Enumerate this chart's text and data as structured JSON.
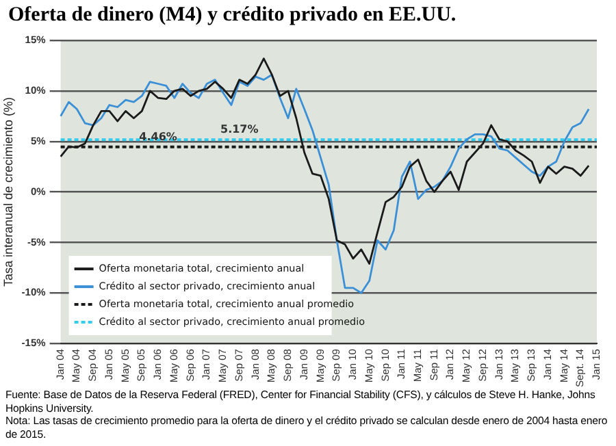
{
  "chart_data": {
    "type": "line",
    "title": "Oferta de dinero (M4) y crédito privado en EE.UU.",
    "ylabel": "Tasa interanual de crecimiento (%)",
    "categories": [
      "Jan 04",
      null,
      "May 04",
      null,
      "Sep 04",
      null,
      "Jan 05",
      null,
      "May 05",
      null,
      "Sep 05",
      null,
      "Jan 06",
      null,
      "May 06",
      null,
      "Sep 06",
      null,
      "Jan 07",
      null,
      "May 07",
      null,
      "Sep 07",
      null,
      "Jan 08",
      null,
      "May 08",
      null,
      "Sep 08",
      null,
      "Jan 09",
      null,
      "May 09",
      null,
      "Sep 09",
      null,
      "Jan 10",
      null,
      "May 10",
      null,
      "Sep 10",
      null,
      "Jan 11",
      null,
      "May 11",
      null,
      "Sep 11",
      null,
      "Jan 12",
      null,
      "May 12",
      null,
      "Sep 12",
      null,
      "Jan 13",
      null,
      "May 13",
      null,
      "Sep 13",
      null,
      "Jan 14",
      null,
      "May 14",
      null,
      "Sept. 14",
      null,
      "Jan 15"
    ],
    "series": [
      {
        "name": "Oferta monetaria total, crecimiento anual",
        "color": "#1a1a1a",
        "line_style": "solid",
        "values": [
          3.5,
          4.5,
          4.4,
          4.8,
          6.6,
          8.0,
          8.0,
          7.0,
          8.0,
          7.3,
          8.0,
          10.0,
          9.3,
          9.2,
          10.0,
          10.2,
          9.5,
          10.0,
          10.2,
          10.9,
          10.2,
          9.3,
          11.1,
          10.7,
          11.6,
          13.2,
          11.6,
          9.5,
          10.0,
          7.3,
          3.9,
          1.8,
          1.6,
          -0.7,
          -4.8,
          -5.2,
          -6.6,
          -5.7,
          -7.1,
          -4.0,
          -1.0,
          -0.5,
          0.5,
          2.5,
          3.2,
          1.1,
          0.0,
          1.1,
          2.0,
          0.2,
          3.0,
          3.9,
          4.8,
          6.6,
          5.2,
          5.0,
          4.1,
          3.6,
          3.0,
          0.9,
          2.5,
          1.8,
          2.5,
          2.3,
          1.6,
          2.6,
          null
        ]
      },
      {
        "name": "Crédito al sector privado, crecimiento anual",
        "color": "#3a8fd6",
        "line_style": "solid",
        "values": [
          7.5,
          8.9,
          8.2,
          6.8,
          6.6,
          7.3,
          8.6,
          8.4,
          9.1,
          8.9,
          9.5,
          10.9,
          10.7,
          10.5,
          9.3,
          10.7,
          9.8,
          9.3,
          10.7,
          11.1,
          9.8,
          8.6,
          10.9,
          10.5,
          11.4,
          11.1,
          11.6,
          9.3,
          7.3,
          10.2,
          8.2,
          6.1,
          3.4,
          0.7,
          -4.8,
          -9.5,
          -9.5,
          -10.0,
          -8.8,
          -4.8,
          -5.7,
          -3.8,
          1.5,
          3.0,
          -0.7,
          0.2,
          0.5,
          1.1,
          2.5,
          4.3,
          5.2,
          5.7,
          5.7,
          5.5,
          4.3,
          4.1,
          3.4,
          2.7,
          2.0,
          1.6,
          2.5,
          3.0,
          5.0,
          6.4,
          6.8,
          8.2,
          null
        ]
      },
      {
        "name": "Oferta monetaria total, crecimiento anual promedio",
        "color": "#1a1a1a",
        "line_style": "dashed",
        "values": [
          4.46,
          4.46,
          4.46,
          4.46,
          4.46,
          4.46,
          4.46,
          4.46,
          4.46,
          4.46,
          4.46,
          4.46,
          4.46,
          4.46,
          4.46,
          4.46,
          4.46,
          4.46,
          4.46,
          4.46,
          4.46,
          4.46,
          4.46,
          4.46,
          4.46,
          4.46,
          4.46,
          4.46,
          4.46,
          4.46,
          4.46,
          4.46,
          4.46,
          4.46,
          4.46,
          4.46,
          4.46,
          4.46,
          4.46,
          4.46,
          4.46,
          4.46,
          4.46,
          4.46,
          4.46,
          4.46,
          4.46,
          4.46,
          4.46,
          4.46,
          4.46,
          4.46,
          4.46,
          4.46,
          4.46,
          4.46,
          4.46,
          4.46,
          4.46,
          4.46,
          4.46,
          4.46,
          4.46,
          4.46,
          4.46,
          4.46,
          4.46
        ]
      },
      {
        "name": "Crédito al sector privado, crecimiento anual promedio",
        "color": "#33ccee",
        "line_style": "dashed",
        "values": [
          5.17,
          5.17,
          5.17,
          5.17,
          5.17,
          5.17,
          5.17,
          5.17,
          5.17,
          5.17,
          5.17,
          5.17,
          5.17,
          5.17,
          5.17,
          5.17,
          5.17,
          5.17,
          5.17,
          5.17,
          5.17,
          5.17,
          5.17,
          5.17,
          5.17,
          5.17,
          5.17,
          5.17,
          5.17,
          5.17,
          5.17,
          5.17,
          5.17,
          5.17,
          5.17,
          5.17,
          5.17,
          5.17,
          5.17,
          5.17,
          5.17,
          5.17,
          5.17,
          5.17,
          5.17,
          5.17,
          5.17,
          5.17,
          5.17,
          5.17,
          5.17,
          5.17,
          5.17,
          5.17,
          5.17,
          5.17,
          5.17,
          5.17,
          5.17,
          5.17,
          5.17,
          5.17,
          5.17,
          5.17,
          5.17,
          5.17,
          5.17
        ]
      }
    ],
    "ylim": [
      -15,
      15
    ],
    "yticks": [
      {
        "value": -15,
        "label": "-15%"
      },
      {
        "value": -10,
        "label": "-10%"
      },
      {
        "value": -5,
        "label": "-5%"
      },
      {
        "value": 0,
        "label": "0%"
      },
      {
        "value": 5,
        "label": "5%"
      },
      {
        "value": 10,
        "label": "10%"
      },
      {
        "value": 15,
        "label": "15%"
      }
    ],
    "grid": "y",
    "legend": "bottom left",
    "marker": "none",
    "annotations": [
      {
        "text": "5.17%",
        "x": "Sep 07",
        "y": 5.17
      },
      {
        "text": "4.46%",
        "x": "Jan 06",
        "y": 4.46
      },
      "Fuente: Base de Datos de la Reserva Federal (FRED), Center for Financial Stability (CFS), y cálculos de Steve H. Hanke, Johns Hopkins University.",
      "Nota: Las tasas de crecimiento promedio para la oferta de dinero y el crédito privado se calculan desde enero de 2004 hasta enero de 2015."
    ]
  }
}
